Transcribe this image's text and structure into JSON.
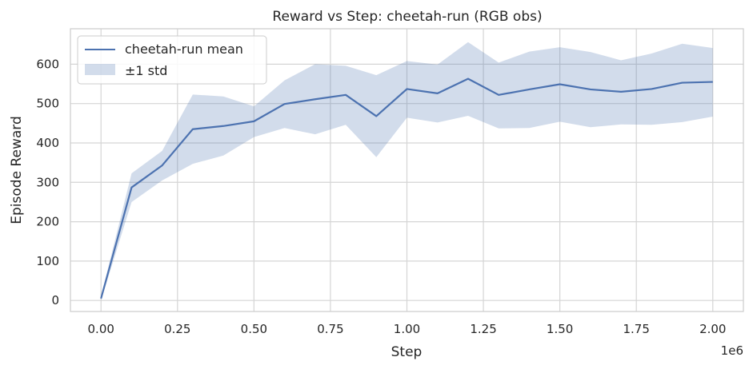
{
  "chart_data": {
    "type": "line",
    "title": "Reward vs Step: cheetah-run (RGB obs)",
    "xlabel": "Step",
    "ylabel": "Episode Reward",
    "x_offset_label": "1e6",
    "xlim": [
      -0.1,
      2.1
    ],
    "ylim": [
      -28,
      690
    ],
    "x_ticks": [
      0.0,
      0.25,
      0.5,
      0.75,
      1.0,
      1.25,
      1.5,
      1.75,
      2.0
    ],
    "x_tick_labels": [
      "0.00",
      "0.25",
      "0.50",
      "0.75",
      "1.00",
      "1.25",
      "1.50",
      "1.75",
      "2.00"
    ],
    "y_ticks": [
      0,
      100,
      200,
      300,
      400,
      500,
      600
    ],
    "y_tick_labels": [
      "0",
      "100",
      "200",
      "300",
      "400",
      "500",
      "600"
    ],
    "grid": true,
    "legend_position": "top-left",
    "x": [
      0.0,
      0.1,
      0.2,
      0.3,
      0.4,
      0.5,
      0.6,
      0.7,
      0.8,
      0.9,
      1.0,
      1.1,
      1.2,
      1.3,
      1.4,
      1.5,
      1.6,
      1.7,
      1.8,
      1.9,
      2.0
    ],
    "series": [
      {
        "name": "cheetah-run mean",
        "type": "line",
        "color": "#4c72b0",
        "values": [
          5,
          287,
          343,
          435,
          443,
          455,
          499,
          511,
          522,
          468,
          537,
          526,
          563,
          522,
          536,
          549,
          536,
          530,
          537,
          553,
          555
        ]
      },
      {
        "name": "±1 std",
        "type": "band",
        "color": "#4c72b0",
        "upper": [
          10,
          323,
          380,
          523,
          518,
          493,
          559,
          600,
          596,
          572,
          608,
          599,
          656,
          604,
          632,
          643,
          631,
          610,
          627,
          652,
          641
        ],
        "lower": [
          0,
          250,
          305,
          347,
          368,
          415,
          438,
          422,
          446,
          364,
          464,
          452,
          469,
          437,
          438,
          454,
          440,
          447,
          446,
          453,
          467
        ]
      }
    ]
  }
}
